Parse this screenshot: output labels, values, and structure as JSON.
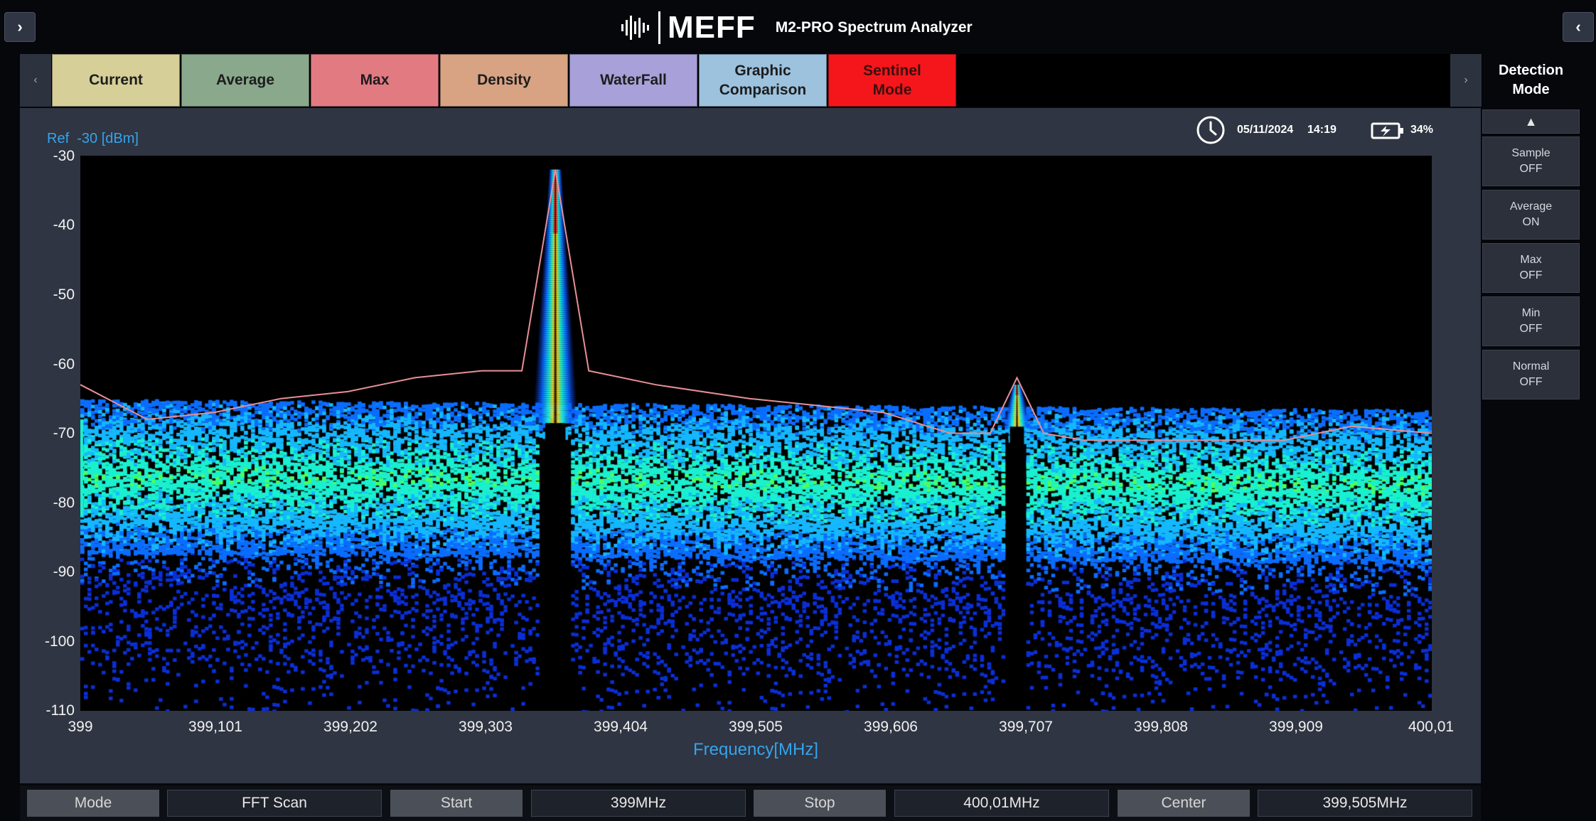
{
  "header": {
    "brand": "MEFF",
    "app_title": "M2-PRO Spectrum Analyzer",
    "left_nav": "›",
    "right_nav": "‹"
  },
  "tabs": [
    {
      "label": "Current",
      "color": "#d7cf98"
    },
    {
      "label": "Average",
      "color": "#8aa88c"
    },
    {
      "label": "Max",
      "color": "#e27a82"
    },
    {
      "label": "Density",
      "color": "#d8a383"
    },
    {
      "label": "WaterFall",
      "color": "#a7a0d9"
    },
    {
      "label": "Graphic\nComparison",
      "color": "#9cc2de"
    },
    {
      "label": "Sentinel\nMode",
      "color": "#f5161b"
    }
  ],
  "tabs_scroll_left": "‹",
  "tabs_scroll_right": "›",
  "status": {
    "date": "05/11/2024",
    "time": "14:19",
    "battery": "34%"
  },
  "detection": {
    "title": "Detection\nMode",
    "up_arrow": "▲",
    "buttons": [
      {
        "name": "Sample",
        "state": "OFF"
      },
      {
        "name": "Average",
        "state": "ON"
      },
      {
        "name": "Max",
        "state": "OFF"
      },
      {
        "name": "Min",
        "state": "OFF"
      },
      {
        "name": "Normal",
        "state": "OFF"
      }
    ]
  },
  "chart_data": {
    "type": "heatmap",
    "ref_label": "Ref  -30 [dBm]",
    "xlabel": "Frequency[MHz]",
    "ylabel": "",
    "xlim": [
      399,
      400.01
    ],
    "ylim": [
      -110,
      -30
    ],
    "yticks": [
      "-30",
      "-40",
      "-50",
      "-60",
      "-70",
      "-80",
      "-90",
      "-100",
      "-110"
    ],
    "xticks": [
      "399",
      "399,101",
      "399,202",
      "399,303",
      "399,404",
      "399,505",
      "399,606",
      "399,707",
      "399,808",
      "399,909",
      "400,01"
    ],
    "grid": false,
    "signals": [
      {
        "freq": 399.355,
        "peak_dbm": -32
      },
      {
        "freq": 399.7,
        "peak_dbm": -63
      }
    ],
    "noise_floor_dbm": -78,
    "max_hold_series": {
      "name": "Max",
      "x": [
        399.0,
        399.05,
        399.1,
        399.15,
        399.2,
        399.25,
        399.3,
        399.33,
        399.355,
        399.38,
        399.43,
        399.5,
        399.55,
        399.6,
        399.65,
        399.68,
        399.7,
        399.72,
        399.75,
        399.8,
        399.85,
        399.9,
        399.95,
        400.01
      ],
      "y": [
        -63,
        -68,
        -67,
        -65,
        -64,
        -62,
        -61,
        -61,
        -32,
        -61,
        -63,
        -65,
        -66,
        -67,
        -70,
        -70,
        -62,
        -70,
        -71,
        -71,
        -71,
        -71,
        -69,
        -70
      ]
    }
  },
  "footer": {
    "mode_label": "Mode",
    "mode_value": "FFT Scan",
    "start_label": "Start",
    "start_value": "399MHz",
    "stop_label": "Stop",
    "stop_value": "400,01MHz",
    "center_label": "Center",
    "center_value": "399,505MHz"
  }
}
